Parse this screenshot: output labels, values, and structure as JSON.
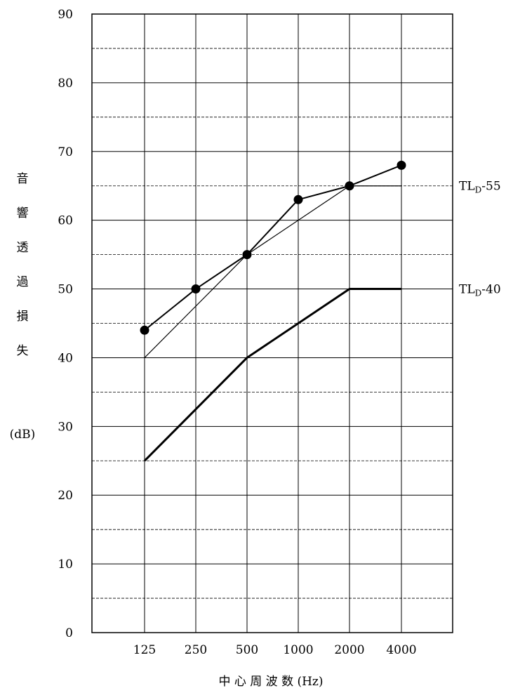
{
  "chart_data": {
    "type": "line",
    "ylabel_chars": [
      "音",
      "響",
      "透",
      "過",
      "損",
      "失"
    ],
    "ylabel_unit": "(dB)",
    "xlabel": "中 心 周 波 数 (Hz)",
    "categories": [
      "125",
      "250",
      "500",
      "1000",
      "2000",
      "4000"
    ],
    "y_ticks": [
      "0",
      "10",
      "20",
      "30",
      "40",
      "50",
      "60",
      "70",
      "80",
      "90"
    ],
    "ylim": [
      0,
      90
    ],
    "grid": true,
    "series": [
      {
        "values": [
          44,
          50,
          55,
          63,
          65,
          68
        ],
        "style": "line-with-markers"
      },
      {
        "values": [
          40,
          null,
          55,
          null,
          65,
          65
        ],
        "style": "thin"
      },
      {
        "values": [
          25,
          null,
          40,
          null,
          50,
          50
        ],
        "style": "thick"
      }
    ],
    "curve_labels": [
      {
        "prefix": "TL",
        "sub": "D",
        "suffix": "-55",
        "at_value": 65
      },
      {
        "prefix": "TL",
        "sub": "D",
        "suffix": "-40",
        "at_value": 50
      }
    ]
  }
}
